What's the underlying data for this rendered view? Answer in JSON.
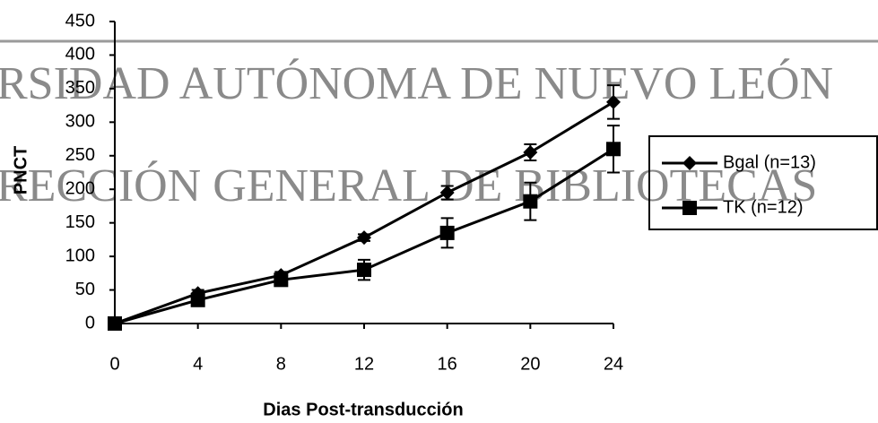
{
  "watermark": [
    "RSIDAD AUTÓNOMA DE NUEVO LEÓN",
    "RECCIÓN GENERAL DE BIBLIOTECAS"
  ],
  "chart_data": {
    "type": "line",
    "x_label": "Dias Post-transducción",
    "y_label": "PNCT",
    "x": [
      0,
      4,
      8,
      12,
      16,
      20,
      24
    ],
    "series": [
      {
        "name": "Bgal (n=13)",
        "color": "#000000",
        "marker": "diamond",
        "values": [
          0,
          45,
          72,
          128,
          195,
          255,
          330
        ],
        "errors": [
          0,
          5,
          5,
          5,
          10,
          12,
          25
        ]
      },
      {
        "name": "TK (n=12)",
        "color": "#000000",
        "marker": "square",
        "values": [
          0,
          35,
          65,
          80,
          135,
          182,
          260
        ],
        "errors": [
          0,
          5,
          5,
          15,
          22,
          28,
          35
        ]
      }
    ],
    "xlim": [
      0,
      24
    ],
    "xticks": [
      0,
      4,
      8,
      12,
      16,
      20,
      24
    ],
    "ylim": [
      0,
      450
    ],
    "yticks": [
      0,
      50,
      100,
      150,
      200,
      250,
      300,
      350,
      400,
      450
    ],
    "legend": "right"
  }
}
